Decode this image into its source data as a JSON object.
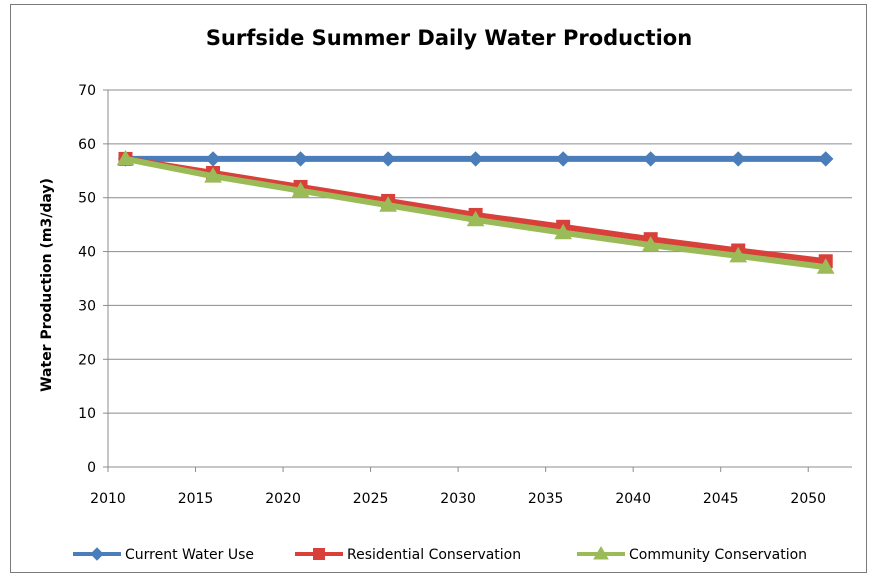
{
  "chart_data": {
    "type": "line",
    "title": "Surfside Summer Daily Water Production",
    "xlabel": "",
    "ylabel": "Water Production (m3/day)",
    "x_ticks": [
      2010,
      2015,
      2020,
      2025,
      2030,
      2035,
      2040,
      2045,
      2050
    ],
    "y_ticks": [
      0,
      10,
      20,
      30,
      40,
      50,
      60,
      70
    ],
    "xlim": [
      2010,
      2052.5
    ],
    "ylim": [
      0,
      70
    ],
    "grid": "horizontal",
    "legend_position": "bottom",
    "x": [
      2011,
      2016,
      2021,
      2026,
      2031,
      2036,
      2041,
      2046,
      2051
    ],
    "series": [
      {
        "name": "Current Water Use",
        "color": "#4a7ebb",
        "marker": "diamond",
        "values": [
          57.2,
          57.2,
          57.2,
          57.2,
          57.2,
          57.2,
          57.2,
          57.2,
          57.2
        ]
      },
      {
        "name": "Residential Conservation",
        "color": "#d9403a",
        "marker": "square",
        "values": [
          57.2,
          54.6,
          52.0,
          49.4,
          46.8,
          44.6,
          42.3,
          40.2,
          38.2
        ]
      },
      {
        "name": "Community Conservation",
        "color": "#9bbb59",
        "marker": "triangle",
        "values": [
          57.2,
          54.0,
          51.3,
          48.6,
          45.9,
          43.5,
          41.2,
          39.2,
          37.1
        ]
      }
    ]
  }
}
